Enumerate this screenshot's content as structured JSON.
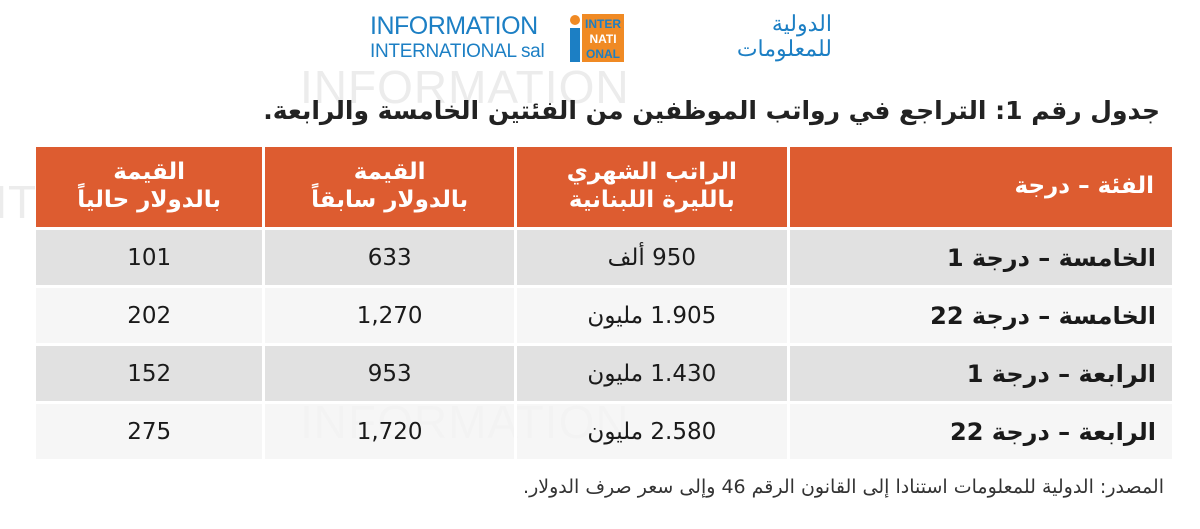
{
  "watermark": {
    "text_en_1": "INFORMATION",
    "text_en_2": "INTERNATIONAL sal"
  },
  "logo": {
    "en_line1": "INFORMATION",
    "en_line2": "INTERNATIONAL sal",
    "mark_text": "INTERNATIONAL",
    "ar_line1": "الدولية",
    "ar_line2": "للمعلومات"
  },
  "title": "جدول رقم 1: التراجع في رواتب الموظفين من الفئتين الخامسة والرابعة.",
  "table": {
    "headers": [
      "الفئة – درجة",
      "الراتب الشهري\nبالليرة اللبنانية",
      "القيمة\nبالدولار سابقاً",
      "القيمة\nبالدولار حالياً"
    ],
    "rows": [
      [
        "الخامسة – درجة 1",
        "950 ألف",
        "633",
        "101"
      ],
      [
        "الخامسة – درجة 22",
        "1.905 مليون",
        "1,270",
        "202"
      ],
      [
        "الرابعة – درجة 1",
        "1.430 مليون",
        "953",
        "152"
      ],
      [
        "الرابعة – درجة 22",
        "2.580 مليون",
        "1,720",
        "275"
      ]
    ]
  },
  "source": "المصدر: الدولية للمعلومات استنادا إلى القانون الرقم 46 وإلى سعر صرف الدولار.",
  "colors": {
    "header_bg": "#dd5c30",
    "header_text": "#ffffff",
    "brand_blue": "#1c7fc4",
    "brand_orange": "#f08a24",
    "row_odd": "#dcdcdc",
    "row_even": "#f5f5f5"
  }
}
